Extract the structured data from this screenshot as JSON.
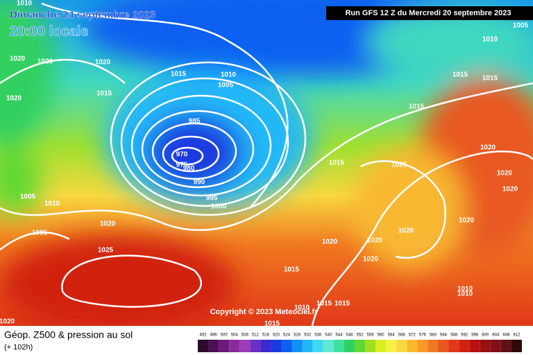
{
  "header": {
    "title": "Dimanche 24 septembre 2023",
    "time": "20:00 locale",
    "run": "Run GFS 12 Z du Mercredi 20 septembre 2023"
  },
  "isobar_labels": [
    1010,
    1020,
    1020,
    1020,
    1015,
    1020,
    1015,
    1010,
    1005,
    985,
    970,
    975,
    980,
    990,
    995,
    1000,
    1015,
    1025,
    1020,
    1020,
    1020,
    1015,
    1015,
    1015,
    1010,
    1005,
    1005,
    1010,
    1005,
    1020,
    1025,
    1020,
    1020,
    1020,
    1020,
    1015,
    1020,
    1010,
    1010,
    1010,
    1015,
    1015,
    1015,
    1020
  ],
  "copyright": "Copyright © 2023 Meteociel.fr",
  "legend": {
    "title": "Géop. Z500 & pression au sol",
    "lead": "(+ 102h)",
    "scale": [
      492,
      496,
      500,
      504,
      508,
      512,
      516,
      520,
      524,
      528,
      532,
      536,
      540,
      544,
      548,
      552,
      556,
      560,
      564,
      568,
      572,
      576,
      580,
      584,
      588,
      592,
      596,
      600,
      604,
      608,
      612
    ],
    "colors": [
      "#2a0a2e",
      "#4b0f55",
      "#6b1a7a",
      "#8a2a9c",
      "#9c3cb8",
      "#6a2fc4",
      "#3a2ad0",
      "#1a3ae0",
      "#1060f0",
      "#1090f8",
      "#20b8f8",
      "#40d8f0",
      "#60e8d0",
      "#40e0a0",
      "#30d060",
      "#60d830",
      "#a0e020",
      "#d8f020",
      "#f8f040",
      "#f8d840",
      "#f8b830",
      "#f89828",
      "#f07820",
      "#e85820",
      "#e03818",
      "#d02010",
      "#b81010",
      "#981010",
      "#801018",
      "#601018",
      "#300808"
    ]
  }
}
